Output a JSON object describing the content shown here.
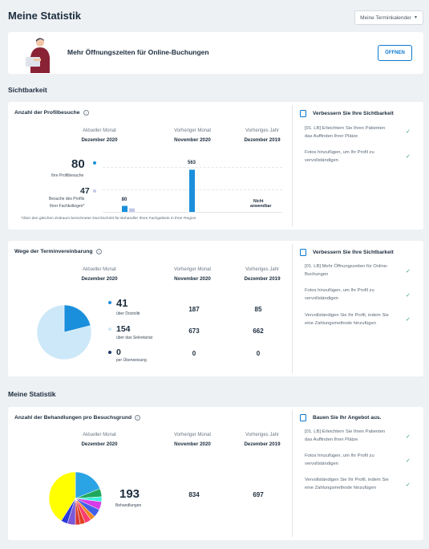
{
  "header": {
    "title": "Meine Statistik",
    "calendar_select": "Meine Terminkalender"
  },
  "banner": {
    "text": "Mehr Öffnungszeiten für Online-Buchungen",
    "button": "ÖFFNEN"
  },
  "sections": {
    "visibility": "Sichtbarkeit",
    "stats": "Meine Statistik"
  },
  "columns": {
    "current": {
      "label": "Aktueller Monat",
      "value": "Dezember 2020"
    },
    "previous": {
      "label": "Vorheriger Monat",
      "value": "November 2020"
    },
    "last_year": {
      "label": "Vorheriges Jahr",
      "value": "Dezember 2019"
    }
  },
  "profile_visits": {
    "title": "Anzahl der Profilbesuche",
    "main_value": "80",
    "main_label": "Ihre Profilbesuche",
    "peer_value": "47",
    "peer_label_1": "Besuche des Profils",
    "peer_label_2": "Ihrer Fachkollegen*",
    "footnote": "*Über den gleichen Zeitraum berechneter Durchschnitt für Behandler Ihres Fachgebiets in Ihrer Region",
    "not_applicable_1": "Nicht",
    "not_applicable_2": "anwendbar",
    "colors": {
      "own": "#1a8fdc",
      "peer": "#c4c8e8"
    }
  },
  "chart_data": [
    {
      "type": "bar",
      "title": "Anzahl der Profilbesuche",
      "categories": [
        "Dezember 2020",
        "November 2020",
        "Dezember 2019"
      ],
      "series": [
        {
          "name": "Ihre Profilbesuche",
          "values": [
            80,
            563,
            null
          ]
        },
        {
          "name": "Besuche des Profils Ihrer Fachkollegen*",
          "values": [
            47,
            null,
            null
          ]
        }
      ],
      "data_labels": [
        "80",
        "563",
        "Nicht anwendbar"
      ]
    },
    {
      "type": "pie",
      "title": "Wege der Terminvereinbarung",
      "labels": [
        "über Doctolib",
        "über das Sekretariat",
        "per Überweisung"
      ],
      "values": [
        41,
        154,
        0
      ],
      "colors": [
        "#1a8fdc",
        "#cde8f8",
        "#1c3a6e"
      ]
    },
    {
      "type": "pie",
      "title": "Anzahl der Behandlungen pro Besuchsgrund",
      "values": [
        0.19,
        0.05,
        0.03,
        0.05,
        0.05,
        0.03,
        0.04,
        0.03,
        0.03,
        0.05,
        0.04,
        0.41
      ],
      "colors": [
        "#2aa4e4",
        "#1ea85b",
        "#3df0e0",
        "#d83ce8",
        "#3f5fe8",
        "#f08a24",
        "#ff3d6e",
        "#e04020",
        "#d8362e",
        "#7a58d8",
        "#2a3ad8",
        "#ffff00"
      ]
    }
  ],
  "booking_ways": {
    "title": "Wege der Terminvereinbarung",
    "rows": [
      {
        "value": "41",
        "label": "über Doctolib",
        "prev": "187",
        "year": "85",
        "color": "#1a8fdc"
      },
      {
        "value": "154",
        "label": "über das Sekretariat",
        "prev": "673",
        "year": "662",
        "color": "#cde8f8"
      },
      {
        "value": "0",
        "label": "per Überweisung",
        "prev": "0",
        "year": "0",
        "color": "#1c3a6e"
      }
    ]
  },
  "treatments": {
    "title": "Anzahl der Behandlungen pro Besuchsgrund",
    "value": "193",
    "label": "Behandlungen",
    "prev": "834",
    "year": "697"
  },
  "tips_1": {
    "title": "Verbessern Sie Ihre Sichtbarkeit",
    "items": [
      {
        "line1": "[01. LB] Erleichtern Sie Ihren Patienten",
        "line2": "das Auffinden Ihrer Plätze"
      },
      {
        "line1": "Fotos hinzufügen, um Ihr Profil zu",
        "line2": "vervollständigen"
      }
    ]
  },
  "tips_2": {
    "title": "Verbessern Sie Ihre Sichtbarkeit",
    "items": [
      {
        "line1": "[01. LB] Mehr Öffnungszeiten für Online-",
        "line2": "Buchungen"
      },
      {
        "line1": "Fotos hinzufügen, um Ihr Profil zu",
        "line2": "vervollständigen"
      },
      {
        "line1": "Vervollständigen Sie Ihr Profil, indem Sie",
        "line2": "eine Zahlungsmethode hinzufügen"
      }
    ]
  },
  "tips_3": {
    "title": "Bauen Sie Ihr Angebot aus.",
    "items": [
      {
        "line1": "[01. LB] Erleichtern Sie Ihren Patienten",
        "line2": "das Auffinden Ihrer Plätze"
      },
      {
        "line1": "Fotos hinzufügen, um Ihr Profil zu",
        "line2": "vervollständigen"
      },
      {
        "line1": "Vervollständigen Sie Ihr Profil, indem Sie",
        "line2": "eine Zahlungsmethode hinzufügen"
      }
    ]
  }
}
